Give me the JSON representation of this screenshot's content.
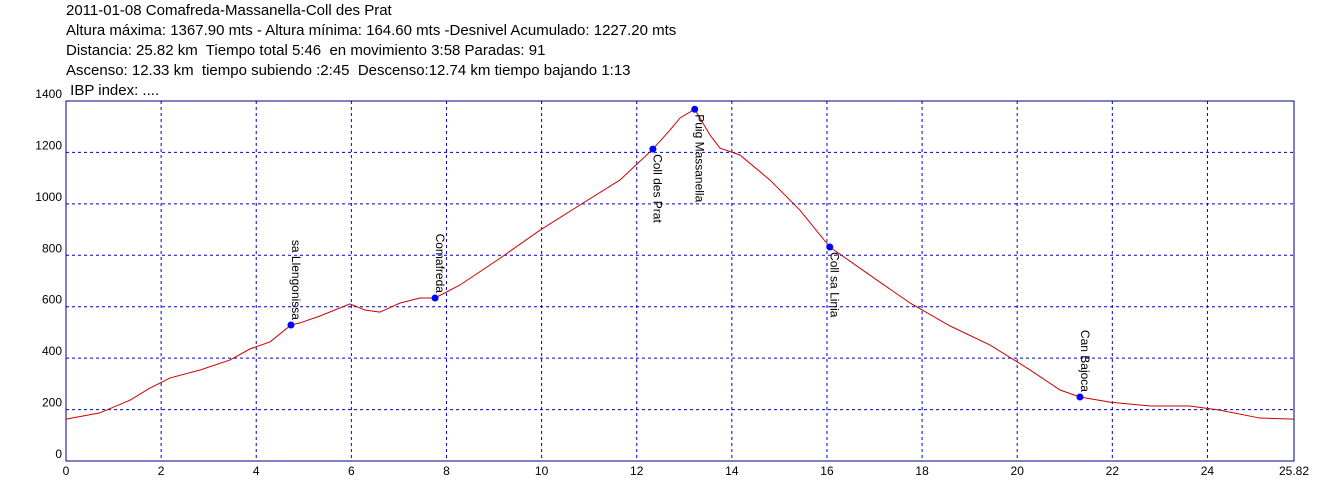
{
  "chart_data": {
    "type": "line",
    "header_lines": [
      "2011-01-08 Comafreda-Massanella-Coll des Prat",
      "Altura máxima: 1367.90 mts - Altura mínima: 164.60 mts -Desnivel Acumulado: 1227.20 mts",
      "Distancia: 25.82 km  Tiempo total 5:46  en movimiento 3:58 Paradas: 91",
      "Ascenso: 12.33 km  tiempo subiendo :2:45  Descenso:12.74 km tiempo bajando 1:13",
      " IBP index: ...."
    ],
    "x": [
      0,
      0.71,
      1.35,
      1.77,
      2.19,
      2.82,
      3.45,
      3.87,
      4.29,
      4.73,
      4.92,
      5.34,
      5.97,
      6.29,
      6.6,
      7.02,
      7.44,
      7.76,
      8.28,
      9.13,
      9.97,
      10.81,
      11.65,
      12.34,
      12.7,
      12.91,
      13.22,
      13.54,
      13.75,
      14.17,
      14.8,
      15.43,
      16.06,
      16.9,
      17.75,
      18.59,
      19.43,
      20.27,
      20.9,
      21.32,
      21.95,
      22.79,
      23.63,
      24.26,
      25.1,
      25.82
    ],
    "series": [
      {
        "color": "#cc0000",
        "values": [
          163,
          187,
          237,
          284,
          323,
          354,
          393,
          436,
          463,
          529,
          537,
          564,
          611,
          587,
          579,
          614,
          634,
          634,
          684,
          789,
          898,
          996,
          1093,
          1213,
          1287,
          1334,
          1368,
          1268,
          1217,
          1190,
          1093,
          976,
          832,
          723,
          614,
          525,
          451,
          354,
          276,
          249,
          229,
          214,
          214,
          198,
          167,
          163
        ]
      }
    ],
    "waypoints": [
      {
        "x": 4.73,
        "y": 529,
        "label": "sa Llengonissa",
        "position": "above"
      },
      {
        "x": 7.76,
        "y": 634,
        "label": "Comafreda",
        "position": "above"
      },
      {
        "x": 12.34,
        "y": 1213,
        "label": "Coll des Prat",
        "position": "below"
      },
      {
        "x": 13.22,
        "y": 1368,
        "label": "Puig Massanella",
        "position": "below"
      },
      {
        "x": 16.06,
        "y": 832,
        "label": "Coll sa Linia",
        "position": "below"
      },
      {
        "x": 21.32,
        "y": 249,
        "label": "Can Bajoca",
        "position": "above"
      }
    ],
    "waypoint_color": "#0000ff",
    "xlim": [
      0,
      25.82
    ],
    "xticks": [
      0,
      2,
      4,
      6,
      8,
      10,
      12,
      14,
      16,
      18,
      20,
      22,
      24,
      25.82
    ],
    "ylim": [
      0,
      1400
    ],
    "yticks": [
      0,
      200,
      400,
      600,
      800,
      1000,
      1200,
      1400
    ],
    "grid": true,
    "grid_color": "#0000cc"
  }
}
